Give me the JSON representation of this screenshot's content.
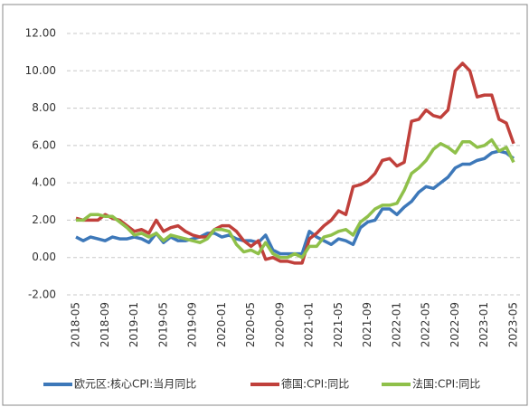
{
  "chart_data": {
    "type": "line",
    "categories": [
      "2018-05",
      null,
      null,
      null,
      "2018-09",
      null,
      null,
      null,
      "2019-01",
      null,
      null,
      null,
      "2019-05",
      null,
      null,
      null,
      "2019-09",
      null,
      null,
      null,
      "2020-01",
      null,
      null,
      null,
      "2020-05",
      null,
      null,
      null,
      "2020-09",
      null,
      null,
      null,
      "2021-01",
      null,
      null,
      null,
      "2021-05",
      null,
      null,
      null,
      "2021-09",
      null,
      null,
      null,
      "2022-01",
      null,
      null,
      null,
      "2022-05",
      null,
      null,
      null,
      "2022-09",
      null,
      null,
      null,
      "2023-01",
      null,
      null,
      null,
      "2023-05"
    ],
    "series": [
      {
        "name": "欧元区:核心CPI:当月同比",
        "color": "#3d78b9",
        "values": [
          1.1,
          0.9,
          1.1,
          1.0,
          0.9,
          1.1,
          1.0,
          1.0,
          1.1,
          1.0,
          0.8,
          1.3,
          0.8,
          1.1,
          0.9,
          0.9,
          1.0,
          1.1,
          1.3,
          1.3,
          1.1,
          1.2,
          1.0,
          0.9,
          0.9,
          0.8,
          1.2,
          0.4,
          0.2,
          0.2,
          0.2,
          0.2,
          1.4,
          1.1,
          0.9,
          0.7,
          1.0,
          0.9,
          0.7,
          1.6,
          1.9,
          2.0,
          2.6,
          2.6,
          2.3,
          2.7,
          3.0,
          3.5,
          3.8,
          3.7,
          4.0,
          4.3,
          4.8,
          5.0,
          5.0,
          5.2,
          5.3,
          5.6,
          5.7,
          5.6,
          5.3
        ]
      },
      {
        "name": "德国:CPI:同比",
        "color": "#c0403b",
        "values": [
          2.1,
          2.0,
          2.0,
          2.0,
          2.3,
          2.1,
          2.0,
          1.7,
          1.4,
          1.5,
          1.3,
          2.0,
          1.4,
          1.6,
          1.7,
          1.4,
          1.2,
          1.1,
          1.1,
          1.5,
          1.7,
          1.7,
          1.4,
          0.9,
          0.6,
          0.9,
          -0.1,
          0.0,
          -0.2,
          -0.2,
          -0.3,
          -0.3,
          1.0,
          1.3,
          1.7,
          2.0,
          2.5,
          2.3,
          3.8,
          3.9,
          4.1,
          4.5,
          5.2,
          5.3,
          4.9,
          5.1,
          7.3,
          7.4,
          7.9,
          7.6,
          7.5,
          7.9,
          10.0,
          10.4,
          10.0,
          8.6,
          8.7,
          8.7,
          7.4,
          7.2,
          6.1
        ]
      },
      {
        "name": "法国:CPI:同比",
        "color": "#8fc04a",
        "values": [
          2.0,
          2.0,
          2.3,
          2.3,
          2.2,
          2.2,
          1.9,
          1.6,
          1.2,
          1.3,
          1.1,
          1.3,
          0.9,
          1.2,
          1.1,
          1.0,
          0.9,
          0.8,
          1.0,
          1.5,
          1.5,
          1.4,
          0.7,
          0.3,
          0.4,
          0.2,
          0.8,
          0.2,
          0.0,
          0.0,
          0.2,
          0.0,
          0.6,
          0.6,
          1.1,
          1.2,
          1.4,
          1.5,
          1.2,
          1.9,
          2.2,
          2.6,
          2.8,
          2.8,
          2.9,
          3.6,
          4.5,
          4.8,
          5.2,
          5.8,
          6.1,
          5.9,
          5.6,
          6.2,
          6.2,
          5.9,
          6.0,
          6.3,
          5.7,
          5.9,
          5.1
        ]
      }
    ],
    "ylim": [
      -2,
      12
    ],
    "yticks": [
      {
        "value": -2,
        "label": "-2.00"
      },
      {
        "value": 0,
        "label": "0.00"
      },
      {
        "value": 2,
        "label": "2.00"
      },
      {
        "value": 4,
        "label": "4.00"
      },
      {
        "value": 6,
        "label": "6.00"
      },
      {
        "value": 8,
        "label": "8.00"
      },
      {
        "value": 10,
        "label": "10.00"
      },
      {
        "value": 12,
        "label": "12.00"
      }
    ],
    "grid": true,
    "legend": "bottom"
  }
}
